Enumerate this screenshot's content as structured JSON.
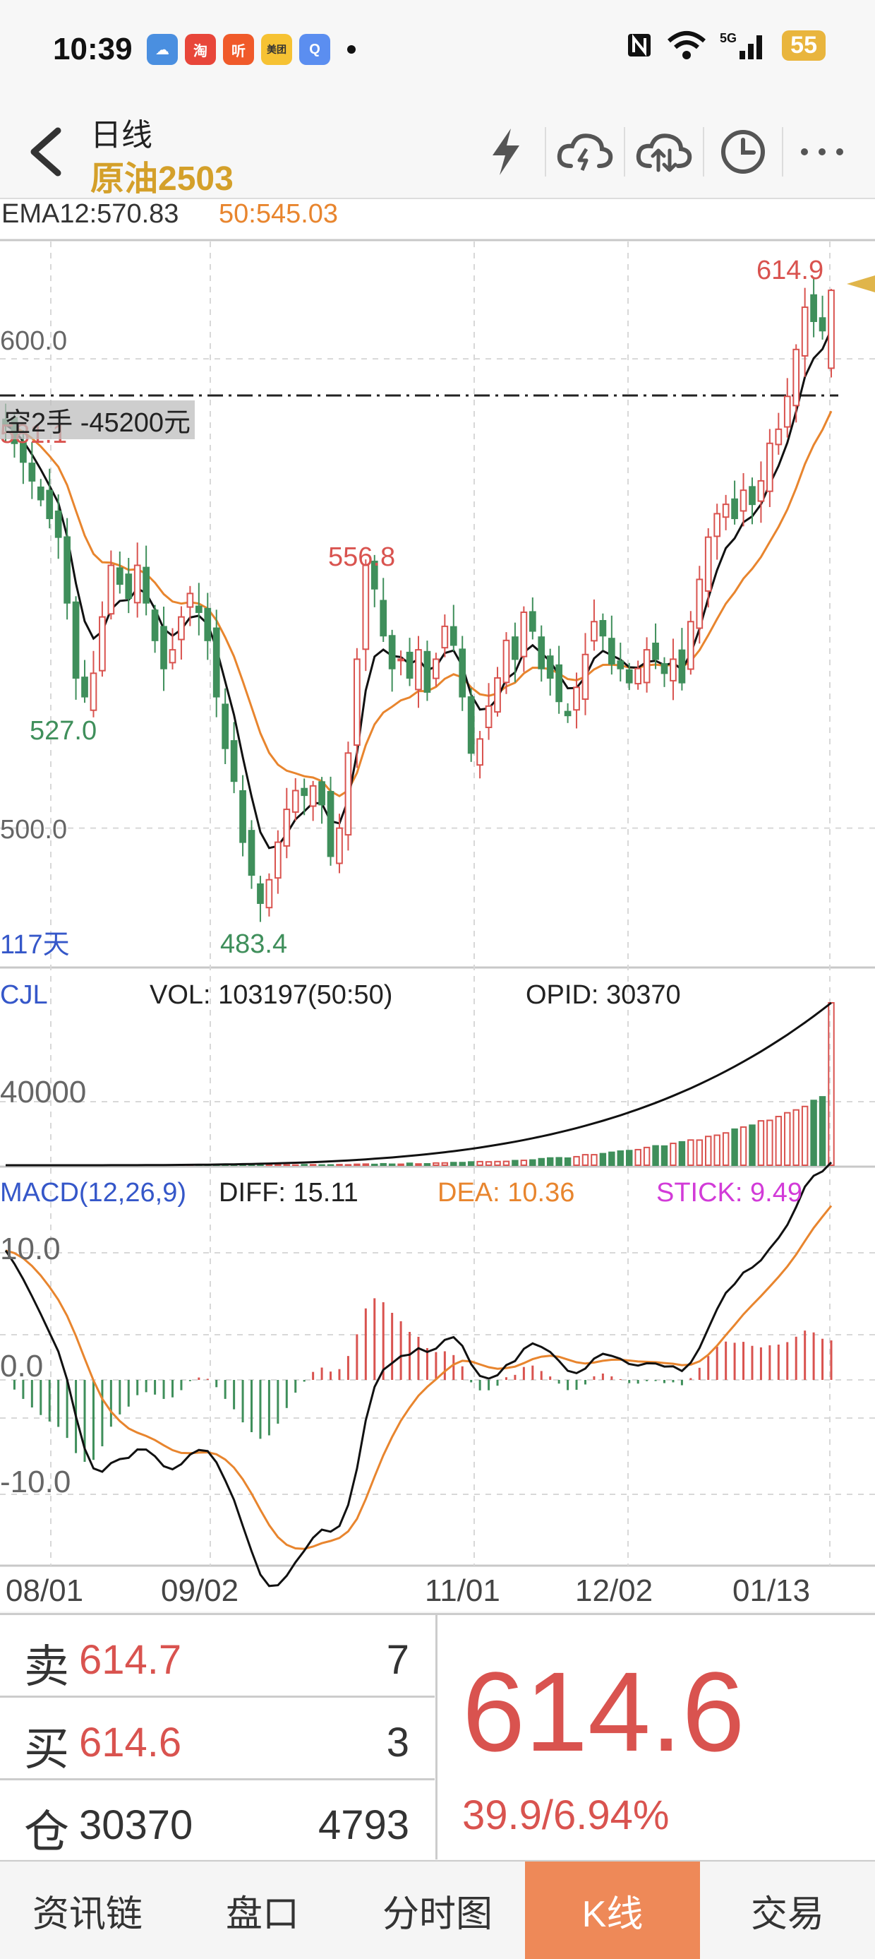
{
  "status": {
    "time": "10:39",
    "network": "5G",
    "battery": "55"
  },
  "nav": {
    "subtitle": "日线",
    "title": "原油2503"
  },
  "indicators": {
    "ema12": "EMA12:570.83",
    "ema50": "50:545.03",
    "position_label": "空2手  -45200元",
    "days_label": "117天",
    "annotations": {
      "high_recent": "614.9",
      "partial_left": "581.1",
      "peak": "556.8",
      "low_left": "527.0",
      "low": "483.4"
    },
    "price_ticks": [
      "600.0",
      "500.0"
    ]
  },
  "volume_panel": {
    "name": "CJL",
    "vol": "VOL: 103197(50:50)",
    "opid": "OPID: 30370",
    "tick": "40000"
  },
  "macd_panel": {
    "name": "MACD(12,26,9)",
    "diff": "DIFF: 15.11",
    "dea": "DEA: 10.36",
    "stick": "STICK: 9.49",
    "ticks": [
      "10.0",
      "0.0",
      "-10.0"
    ]
  },
  "x_axis": [
    "08/01",
    "09/02",
    "11/01",
    "12/02",
    "01/13"
  ],
  "quote": {
    "sell": {
      "label": "卖",
      "price": "614.7",
      "qty": "7"
    },
    "buy": {
      "label": "买",
      "price": "614.6",
      "qty": "3"
    },
    "oi": {
      "label": "仓",
      "value": "30370",
      "qty": "4793"
    },
    "last": "614.6",
    "change": "39.9/6.94%"
  },
  "tabs": [
    "资讯链",
    "盘口",
    "分时图",
    "K线",
    "交易"
  ],
  "colors": {
    "up": "#d9534f",
    "down": "#3f8f5b",
    "ema50": "#e8852e",
    "accent": "#ee8958"
  },
  "chart_data": {
    "type": "candlestick",
    "ylim": [
      470,
      625
    ],
    "closes": [
      586,
      582,
      578,
      574,
      570,
      566,
      562,
      548,
      532,
      528,
      533,
      545,
      556,
      552,
      549,
      556,
      548,
      540,
      534,
      538,
      545,
      550,
      546,
      540,
      528,
      517,
      510,
      497,
      490,
      484,
      489,
      497,
      504,
      508,
      507,
      509,
      505,
      494,
      500,
      516,
      536,
      556,
      551,
      541,
      534,
      536,
      532,
      538,
      529,
      536,
      543,
      539,
      528,
      516,
      519,
      526,
      532,
      540,
      536,
      546,
      542,
      534,
      532,
      527,
      524,
      530,
      537,
      544,
      541,
      535,
      534,
      531,
      534,
      538,
      536,
      533,
      536,
      531,
      544,
      553,
      562,
      567,
      569,
      566,
      572,
      569,
      574,
      582,
      585,
      592,
      602,
      611,
      608,
      606,
      614.6
    ],
    "x_ticks": [
      "08/01",
      "09/02",
      "11/01",
      "12/02",
      "01/13"
    ],
    "series": [
      {
        "name": "EMA12",
        "value": "570.83"
      },
      {
        "name": "50",
        "value": "545.03"
      }
    ]
  }
}
